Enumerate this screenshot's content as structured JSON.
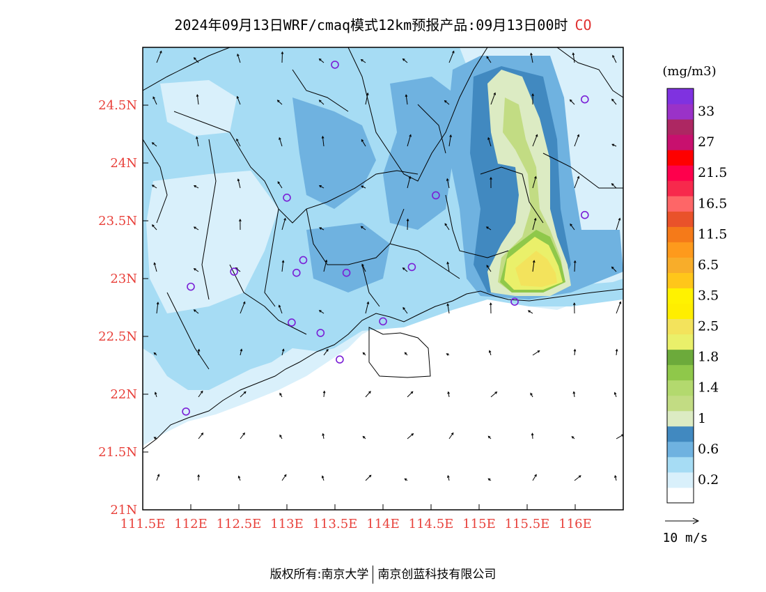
{
  "header": {
    "title": "2024年09月13日WRF/cmaq模式12km预报产品:09月13日00时",
    "species": "CO"
  },
  "legend": {
    "unit": "(mg/m3)",
    "bins": [
      {
        "label": "",
        "color": "#ffffff"
      },
      {
        "label": "0.2",
        "color": "#d9f0fb"
      },
      {
        "label": "",
        "color": "#a6dcf4"
      },
      {
        "label": "0.6",
        "color": "#6fb2e0"
      },
      {
        "label": "",
        "color": "#4189c0"
      },
      {
        "label": "1",
        "color": "#dcebc3"
      },
      {
        "label": "",
        "color": "#c2dc83"
      },
      {
        "label": "1.4",
        "color": "#b3d96e"
      },
      {
        "label": "",
        "color": "#8fc84a"
      },
      {
        "label": "1.8",
        "color": "#6caa3b"
      },
      {
        "label": "",
        "color": "#eaf06a"
      },
      {
        "label": "2.5",
        "color": "#f3e35c"
      },
      {
        "label": "",
        "color": "#ffee00"
      },
      {
        "label": "3.5",
        "color": "#fff200"
      },
      {
        "label": "",
        "color": "#ffc61a"
      },
      {
        "label": "6.5",
        "color": "#f8ad2a"
      },
      {
        "label": "",
        "color": "#fe9a1c"
      },
      {
        "label": "11.5",
        "color": "#f57a19"
      },
      {
        "label": "",
        "color": "#e9522a"
      },
      {
        "label": "16.5",
        "color": "#fe6667"
      },
      {
        "label": "",
        "color": "#f7294c"
      },
      {
        "label": "21.5",
        "color": "#fe004c"
      },
      {
        "label": "",
        "color": "#fe0000"
      },
      {
        "label": "27",
        "color": "#c8106e"
      },
      {
        "label": "",
        "color": "#ad2762"
      },
      {
        "label": "33",
        "color": "#9a32c8"
      },
      {
        "label": "",
        "color": "#7f32e0"
      }
    ]
  },
  "wind_key": {
    "label": "10 m/s"
  },
  "footer": {
    "left": "版权所有:南京大学",
    "right": "南京创蓝科技有限公司"
  },
  "chart_data": {
    "type": "heatmap",
    "title": "2024年09月13日WRF/cmaq模式12km预报产品:09月13日00时 CO",
    "xlabel": "",
    "ylabel": "",
    "xlim": [
      111.5,
      116.5
    ],
    "ylim": [
      21.0,
      25.0
    ],
    "x_ticks": [
      "111.5E",
      "112E",
      "112.5E",
      "113E",
      "113.5E",
      "114E",
      "114.5E",
      "115E",
      "115.5E",
      "116E"
    ],
    "x_tick_values": [
      111.5,
      112.0,
      112.5,
      113.0,
      113.5,
      114.0,
      114.5,
      115.0,
      115.5,
      116.0
    ],
    "y_ticks": [
      "21N",
      "21.5N",
      "22N",
      "22.5N",
      "23N",
      "23.5N",
      "24N",
      "24.5N"
    ],
    "y_tick_values": [
      21.0,
      21.5,
      22.0,
      22.5,
      23.0,
      23.5,
      24.0,
      24.5
    ],
    "colorbar_levels": [
      0.2,
      0.6,
      1,
      1.4,
      1.8,
      2.5,
      3.5,
      6.5,
      11.5,
      16.5,
      21.5,
      27,
      33
    ],
    "colorbar_unit": "(mg/m3)",
    "high_regions": [
      {
        "lon": 115.35,
        "lat": 24.3,
        "value": 1.3
      },
      {
        "lon": 115.45,
        "lat": 23.05,
        "value": 2.6
      },
      {
        "lon": 115.45,
        "lat": 23.2,
        "value": 1.8
      }
    ],
    "stations": [
      {
        "lon": 113.5,
        "lat": 24.85
      },
      {
        "lon": 116.1,
        "lat": 24.55
      },
      {
        "lon": 113.0,
        "lat": 23.7
      },
      {
        "lon": 114.55,
        "lat": 23.72
      },
      {
        "lon": 116.1,
        "lat": 23.55
      },
      {
        "lon": 113.17,
        "lat": 23.16
      },
      {
        "lon": 112.45,
        "lat": 23.06
      },
      {
        "lon": 113.1,
        "lat": 23.05
      },
      {
        "lon": 113.62,
        "lat": 23.05
      },
      {
        "lon": 114.3,
        "lat": 23.1
      },
      {
        "lon": 112.0,
        "lat": 22.93
      },
      {
        "lon": 115.37,
        "lat": 22.8
      },
      {
        "lon": 113.05,
        "lat": 22.62
      },
      {
        "lon": 113.35,
        "lat": 22.53
      },
      {
        "lon": 114.0,
        "lat": 22.63
      },
      {
        "lon": 113.55,
        "lat": 22.3
      },
      {
        "lon": 111.95,
        "lat": 21.85
      }
    ],
    "wind_reference": "10 m/s"
  }
}
